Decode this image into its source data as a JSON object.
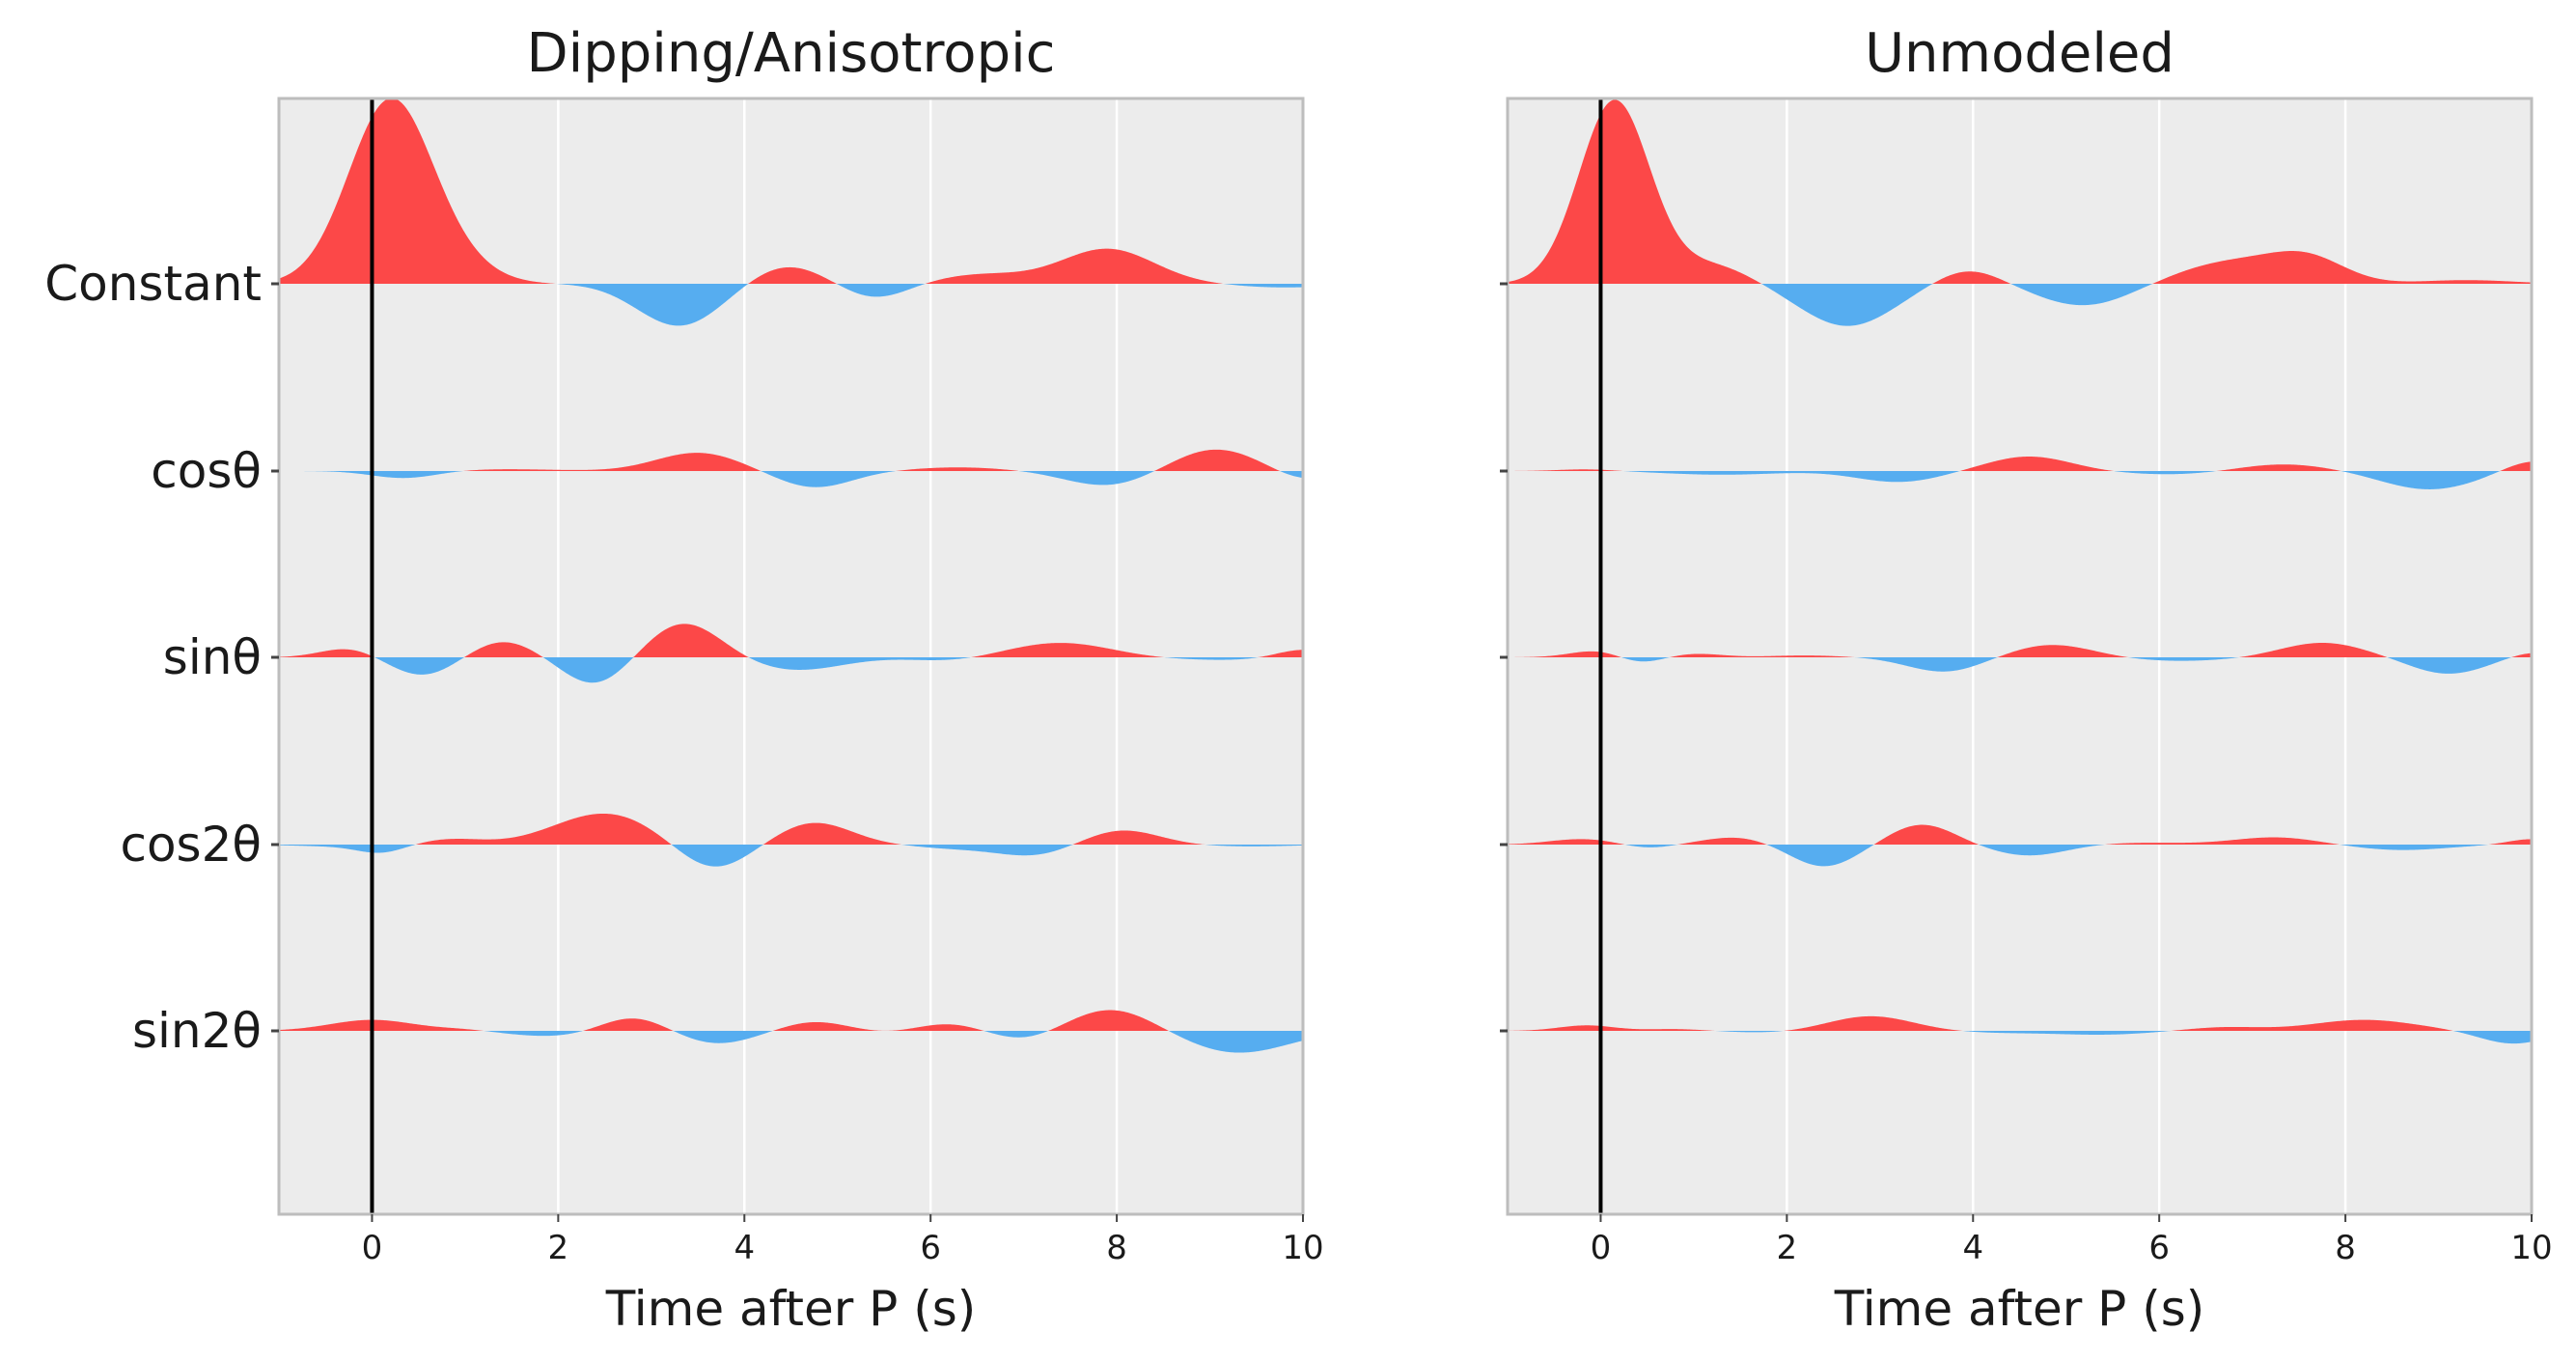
{
  "colors": {
    "positive": "#fc4848",
    "negative": "#56adf0",
    "panel_bg": "#ececec",
    "grid": "#ffffff",
    "spine": "#bdbdbd",
    "zero_line": "#000000"
  },
  "chart_data": [
    {
      "type": "area",
      "title": "Dipping/Anisotropic",
      "xlabel": "Time after P (s)",
      "xlim": [
        -1,
        10
      ],
      "xticks": [
        "0",
        "2",
        "4",
        "6",
        "8",
        "10"
      ],
      "ytick_labels": [
        "Constant",
        "cosθ",
        "sinθ",
        "cos2θ",
        "sin2θ"
      ],
      "grid": true,
      "zero_time_line": 0,
      "series": [
        {
          "name": "Constant",
          "peaks": [
            [
              0.2,
              1.0,
              0.45
            ],
            [
              0.95,
              0.07,
              0.4
            ],
            [
              3.3,
              -0.23,
              0.45
            ],
            [
              4.45,
              0.1,
              0.4
            ],
            [
              5.4,
              -0.08,
              0.35
            ],
            [
              6.55,
              0.05,
              0.5
            ],
            [
              7.9,
              0.19,
              0.5
            ],
            [
              9.8,
              -0.02,
              0.5
            ]
          ]
        },
        {
          "name": "cosθ",
          "peaks": [
            [
              0.35,
              -0.04,
              0.35
            ],
            [
              1.4,
              0.01,
              0.6
            ],
            [
              3.5,
              0.1,
              0.45
            ],
            [
              4.75,
              -0.09,
              0.4
            ],
            [
              6.3,
              0.02,
              0.5
            ],
            [
              7.9,
              -0.08,
              0.45
            ],
            [
              9.05,
              0.12,
              0.45
            ],
            [
              10.0,
              -0.05,
              0.3
            ]
          ]
        },
        {
          "name": "sinθ",
          "peaks": [
            [
              -0.25,
              0.05,
              0.3
            ],
            [
              0.55,
              -0.1,
              0.35
            ],
            [
              1.4,
              0.09,
              0.35
            ],
            [
              2.4,
              -0.15,
              0.35
            ],
            [
              3.35,
              0.19,
              0.4
            ],
            [
              4.55,
              -0.07,
              0.5
            ],
            [
              6.2,
              -0.02,
              0.4
            ],
            [
              7.4,
              0.08,
              0.55
            ],
            [
              9.2,
              -0.015,
              0.8
            ],
            [
              10.0,
              0.05,
              0.3
            ]
          ]
        },
        {
          "name": "cos2θ",
          "peaks": [
            [
              -0.3,
              -0.01,
              0.5
            ],
            [
              0.1,
              -0.04,
              0.25
            ],
            [
              0.85,
              0.03,
              0.35
            ],
            [
              2.5,
              0.17,
              0.55
            ],
            [
              3.65,
              -0.14,
              0.38
            ],
            [
              4.75,
              0.12,
              0.4
            ],
            [
              6.25,
              -0.02,
              0.4
            ],
            [
              7.1,
              -0.06,
              0.4
            ],
            [
              8.05,
              0.08,
              0.4
            ],
            [
              9.4,
              -0.01,
              0.5
            ]
          ]
        },
        {
          "name": "sin2θ",
          "peaks": [
            [
              0.0,
              0.06,
              0.45
            ],
            [
              1.0,
              0.01,
              0.3
            ],
            [
              1.95,
              -0.03,
              0.5
            ],
            [
              2.8,
              0.08,
              0.35
            ],
            [
              3.7,
              -0.07,
              0.4
            ],
            [
              4.75,
              0.05,
              0.35
            ],
            [
              5.55,
              -0.01,
              0.3
            ],
            [
              6.2,
              0.04,
              0.35
            ],
            [
              7.0,
              -0.05,
              0.35
            ],
            [
              7.95,
              0.12,
              0.45
            ],
            [
              9.3,
              -0.12,
              0.55
            ]
          ]
        }
      ]
    },
    {
      "type": "area",
      "title": "Unmodeled",
      "xlabel": "Time after P (s)",
      "xlim": [
        -1,
        10
      ],
      "xticks": [
        "0",
        "2",
        "4",
        "6",
        "8",
        "10"
      ],
      "grid": true,
      "zero_time_line": 0,
      "series": [
        {
          "peaks": [
            [
              0.15,
              1.0,
              0.38
            ],
            [
              1.2,
              0.1,
              0.4
            ],
            [
              2.65,
              -0.23,
              0.5
            ],
            [
              3.95,
              0.08,
              0.35
            ],
            [
              5.2,
              -0.12,
              0.5
            ],
            [
              6.8,
              0.12,
              0.6
            ],
            [
              7.6,
              0.12,
              0.4
            ],
            [
              9.3,
              0.02,
              0.5
            ]
          ]
        },
        {
          "peaks": [
            [
              -0.15,
              0.01,
              0.3
            ],
            [
              1.3,
              -0.02,
              0.6
            ],
            [
              3.2,
              -0.06,
              0.45
            ],
            [
              4.6,
              0.08,
              0.45
            ],
            [
              6.2,
              -0.02,
              0.6
            ],
            [
              7.3,
              0.04,
              0.5
            ],
            [
              8.9,
              -0.1,
              0.5
            ],
            [
              10.0,
              0.06,
              0.3
            ]
          ]
        },
        {
          "peaks": [
            [
              0.0,
              0.04,
              0.3
            ],
            [
              0.4,
              -0.04,
              0.25
            ],
            [
              1.0,
              0.02,
              0.3
            ],
            [
              2.2,
              0.01,
              0.4
            ],
            [
              3.7,
              -0.08,
              0.4
            ],
            [
              4.85,
              0.07,
              0.45
            ],
            [
              6.2,
              -0.02,
              0.6
            ],
            [
              7.75,
              0.08,
              0.45
            ],
            [
              9.1,
              -0.09,
              0.4
            ],
            [
              10.0,
              0.03,
              0.25
            ]
          ]
        },
        {
          "peaks": [
            [
              -0.2,
              0.03,
              0.35
            ],
            [
              0.5,
              -0.02,
              0.25
            ],
            [
              1.45,
              0.04,
              0.35
            ],
            [
              2.4,
              -0.12,
              0.35
            ],
            [
              3.45,
              0.11,
              0.35
            ],
            [
              4.6,
              -0.06,
              0.4
            ],
            [
              5.8,
              0.01,
              0.5
            ],
            [
              7.25,
              0.04,
              0.45
            ],
            [
              8.6,
              -0.03,
              0.5
            ],
            [
              10.0,
              0.03,
              0.25
            ]
          ]
        },
        {
          "peaks": [
            [
              -0.15,
              0.03,
              0.3
            ],
            [
              0.8,
              0.01,
              0.3
            ],
            [
              1.8,
              -0.01,
              0.4
            ],
            [
              2.9,
              0.08,
              0.45
            ],
            [
              4.3,
              -0.01,
              0.5
            ],
            [
              5.4,
              -0.02,
              0.5
            ],
            [
              6.7,
              0.02,
              0.4
            ],
            [
              8.2,
              0.06,
              0.55
            ],
            [
              9.8,
              -0.07,
              0.35
            ]
          ]
        }
      ]
    }
  ]
}
